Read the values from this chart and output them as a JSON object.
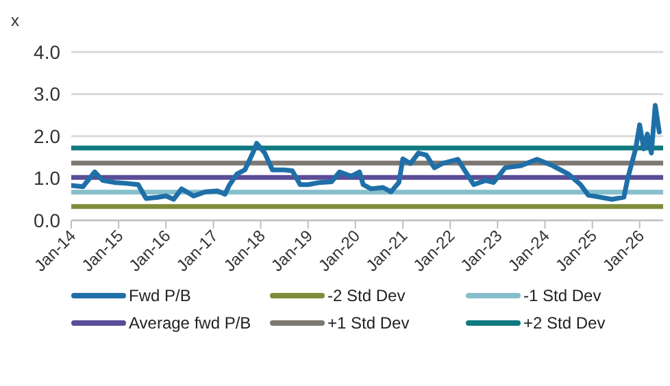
{
  "chart_data": {
    "type": "line",
    "ylabel": "x",
    "grid": "y",
    "legend": "bottom",
    "line_style": "solid",
    "marker": "none",
    "xlim": [
      "2014-01",
      "2026-07"
    ],
    "xticks": [
      {
        "value": "2014-01",
        "label": "Jan-14"
      },
      {
        "value": "2015-01",
        "label": "Jan-15"
      },
      {
        "value": "2016-01",
        "label": "Jan-16"
      },
      {
        "value": "2017-01",
        "label": "Jan-17"
      },
      {
        "value": "2018-01",
        "label": "Jan-18"
      },
      {
        "value": "2019-01",
        "label": "Jan-19"
      },
      {
        "value": "2020-01",
        "label": "Jan-20"
      },
      {
        "value": "2021-01",
        "label": "Jan-21"
      },
      {
        "value": "2022-01",
        "label": "Jan-22"
      },
      {
        "value": "2023-01",
        "label": "Jan-23"
      },
      {
        "value": "2024-01",
        "label": "Jan-24"
      },
      {
        "value": "2025-01",
        "label": "Jan-25"
      },
      {
        "value": "2026-01",
        "label": "Jan-26"
      }
    ],
    "ylim": [
      0,
      4
    ],
    "yticks": [
      {
        "value": 0,
        "label": "0.0"
      },
      {
        "value": 1,
        "label": "1.0"
      },
      {
        "value": 2,
        "label": "2.0"
      },
      {
        "value": 3,
        "label": "3.0"
      },
      {
        "value": 4,
        "label": "4.0"
      }
    ],
    "series": [
      {
        "name": "Fwd P/B",
        "color": "#1f6fa8",
        "x": [
          "2014-01",
          "2014-04",
          "2014-07",
          "2014-09",
          "2014-12",
          "2015-03",
          "2015-06",
          "2015-08",
          "2015-11",
          "2016-01",
          "2016-03",
          "2016-05",
          "2016-08",
          "2016-11",
          "2017-02",
          "2017-04",
          "2017-05",
          "2017-07",
          "2017-09",
          "2017-11",
          "2017-12",
          "2018-02",
          "2018-04",
          "2018-07",
          "2018-09",
          "2018-11",
          "2019-01",
          "2019-04",
          "2019-07",
          "2019-09",
          "2019-12",
          "2020-02",
          "2020-03",
          "2020-05",
          "2020-08",
          "2020-10",
          "2020-12",
          "2021-01",
          "2021-03",
          "2021-05",
          "2021-07",
          "2021-09",
          "2021-11",
          "2022-03",
          "2022-05",
          "2022-07",
          "2022-10",
          "2022-12",
          "2023-03",
          "2023-07",
          "2023-11",
          "2024-03",
          "2024-07",
          "2024-10",
          "2024-12",
          "2025-03",
          "2025-06",
          "2025-09",
          "2025-10",
          "2025-12",
          "2026-01",
          "2026-02",
          "2026-03",
          "2026-04",
          "2026-05",
          "2026-06"
        ],
        "values": [
          0.83,
          0.8,
          1.15,
          0.95,
          0.9,
          0.88,
          0.85,
          0.52,
          0.55,
          0.58,
          0.5,
          0.75,
          0.58,
          0.68,
          0.7,
          0.62,
          0.82,
          1.1,
          1.2,
          1.6,
          1.83,
          1.6,
          1.2,
          1.2,
          1.18,
          0.85,
          0.85,
          0.9,
          0.92,
          1.15,
          1.05,
          1.15,
          0.85,
          0.75,
          0.78,
          0.68,
          0.9,
          1.46,
          1.35,
          1.6,
          1.55,
          1.25,
          1.35,
          1.45,
          1.15,
          0.85,
          0.95,
          0.9,
          1.25,
          1.3,
          1.45,
          1.3,
          1.1,
          0.85,
          0.6,
          0.55,
          0.5,
          0.55,
          1.0,
          1.7,
          2.27,
          1.7,
          2.05,
          1.6,
          2.73,
          2.1
        ]
      },
      {
        "name": "-2 Std Dev",
        "color": "#7f8c3a",
        "x": [
          "2014-01",
          "2026-07"
        ],
        "values": [
          0.33,
          0.33
        ]
      },
      {
        "name": "-1 Std Dev",
        "color": "#86bfcb",
        "x": [
          "2014-01",
          "2026-07"
        ],
        "values": [
          0.67,
          0.67
        ]
      },
      {
        "name": "Average fwd P/B",
        "color": "#5b4d97",
        "x": [
          "2014-01",
          "2026-07"
        ],
        "values": [
          1.02,
          1.02
        ]
      },
      {
        "name": "+1 Std Dev",
        "color": "#7d7872",
        "x": [
          "2014-01",
          "2026-07"
        ],
        "values": [
          1.36,
          1.36
        ]
      },
      {
        "name": "+2 Std Dev",
        "color": "#0f7a80",
        "x": [
          "2014-01",
          "2026-07"
        ],
        "values": [
          1.72,
          1.72
        ]
      }
    ]
  }
}
